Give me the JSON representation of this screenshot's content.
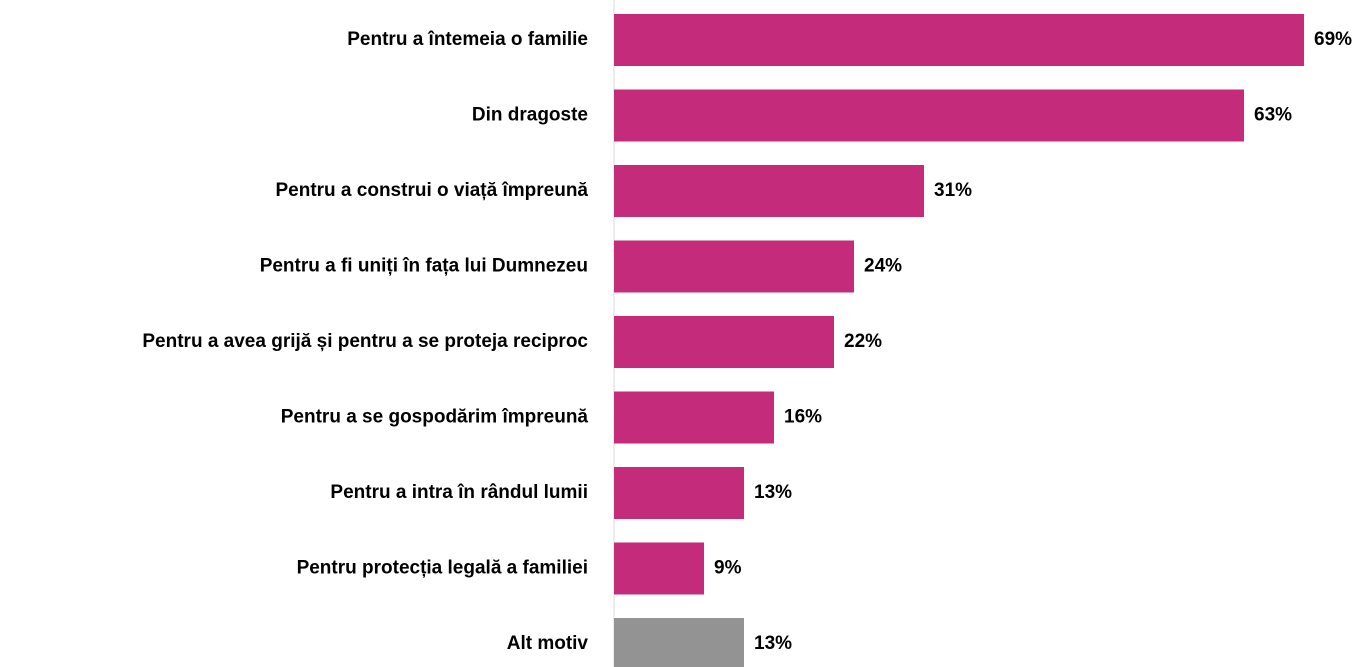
{
  "chart_data": {
    "type": "barh",
    "categories": [
      "Pentru a întemeia o familie",
      "Din dragoste",
      "Pentru a construi o viață împreună",
      "Pentru a fi uniți în fața lui Dumnezeu",
      "Pentru a avea grijă și pentru a se proteja reciproc",
      "Pentru a se gospodărim împreună",
      "Pentru a intra în rândul lumii",
      "Pentru protecția legală a familiei",
      "Alt motiv"
    ],
    "values": [
      69,
      63,
      31,
      24,
      22,
      16,
      13,
      9,
      13
    ],
    "value_labels": [
      "69%",
      "63%",
      "31%",
      "24%",
      "22%",
      "16%",
      "13%",
      "9%",
      "13%"
    ],
    "colors": [
      "#c42b7a",
      "#c42b7a",
      "#c42b7a",
      "#c42b7a",
      "#c42b7a",
      "#c42b7a",
      "#c42b7a",
      "#c42b7a",
      "#939393"
    ]
  }
}
